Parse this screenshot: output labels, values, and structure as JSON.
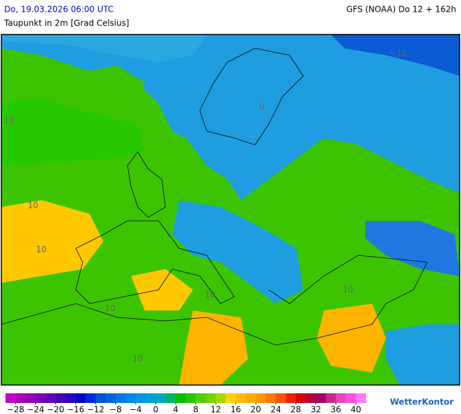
{
  "header": {
    "title": "Do, 19.03.2026 06:00 UTC",
    "subtitle": "Taupunkt in 2m [Grad Celsius]",
    "model": "GFS (NOAA) Do 12 + 162h"
  },
  "map": {
    "contour_labels": [
      "10",
      "−10",
      "10",
      "10",
      "10",
      "10",
      "10",
      "10",
      "0"
    ]
  },
  "colorbar": {
    "range": [
      -30,
      42
    ],
    "step": 2,
    "ticks": [
      {
        "value": -28,
        "label": "−28"
      },
      {
        "value": -24,
        "label": "−24"
      },
      {
        "value": -20,
        "label": "−20"
      },
      {
        "value": -16,
        "label": "−16"
      },
      {
        "value": -12,
        "label": "−12"
      },
      {
        "value": -8,
        "label": "−8"
      },
      {
        "value": -4,
        "label": "−4"
      },
      0,
      4,
      8,
      12,
      16,
      20,
      24,
      28,
      32,
      36,
      40
    ],
    "colors": [
      "#c000c0",
      "#a800b8",
      "#9000b4",
      "#7800b4",
      "#6000b4",
      "#4800b8",
      "#2800c8",
      "#0000c8",
      "#0028dc",
      "#0050dc",
      "#0064e6",
      "#0078e6",
      "#0088e6",
      "#0096e0",
      "#00a0d8",
      "#00aabe",
      "#00b464",
      "#00be00",
      "#28c800",
      "#50d200",
      "#78d200",
      "#a0dc00",
      "#ffd200",
      "#ffbe00",
      "#ffaa00",
      "#ff9600",
      "#ff7800",
      "#ff5000",
      "#f01e00",
      "#dc0000",
      "#b4003c",
      "#a00064",
      "#c8288c",
      "#e646b4",
      "#ff50dc",
      "#ff78ff"
    ]
  },
  "logo": "WetterKontor"
}
